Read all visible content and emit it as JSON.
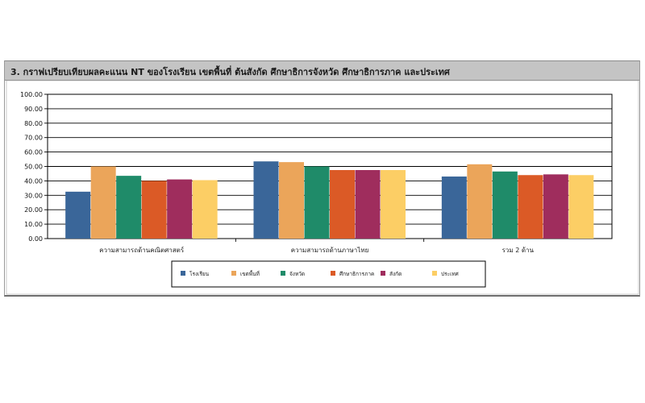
{
  "section": {
    "title": "3. กราฟเปรียบเทียบผลคะแนน NT ของโรงเรียน เขตพื้นที่  ต้นสังกัด ศึกษาธิการจังหวัด ศึกษาธิการภาค และประเทศ"
  },
  "chart_data": {
    "type": "bar",
    "title": "",
    "xlabel": "",
    "ylabel": "",
    "ylim": [
      0,
      100
    ],
    "yticks": [
      "0.00",
      "10.00",
      "20.00",
      "30.00",
      "40.00",
      "50.00",
      "60.00",
      "70.00",
      "80.00",
      "90.00",
      "100.00"
    ],
    "grid": true,
    "legend_position": "bottom",
    "categories": [
      "ความสามารถด้านคณิตศาสตร์",
      "ความสามารถด้านภาษาไทย",
      "รวม 2 ด้าน"
    ],
    "series": [
      {
        "name": "โรงเรียน",
        "color": "#3a6699",
        "values": [
          32.5,
          53.5,
          43.0
        ]
      },
      {
        "name": "เขตพื้นที่",
        "color": "#eba55a",
        "values": [
          50.0,
          53.0,
          51.5
        ]
      },
      {
        "name": "จังหวัด",
        "color": "#1f8b69",
        "values": [
          43.5,
          50.0,
          46.5
        ]
      },
      {
        "name": "ศึกษาธิการภาค",
        "color": "#db5a26",
        "values": [
          40.0,
          47.5,
          44.0
        ]
      },
      {
        "name": "สังกัด",
        "color": "#9f2d5d",
        "values": [
          41.0,
          47.5,
          44.5
        ]
      },
      {
        "name": "ประเทศ",
        "color": "#fcce65",
        "values": [
          40.5,
          47.5,
          44.0
        ]
      }
    ]
  }
}
